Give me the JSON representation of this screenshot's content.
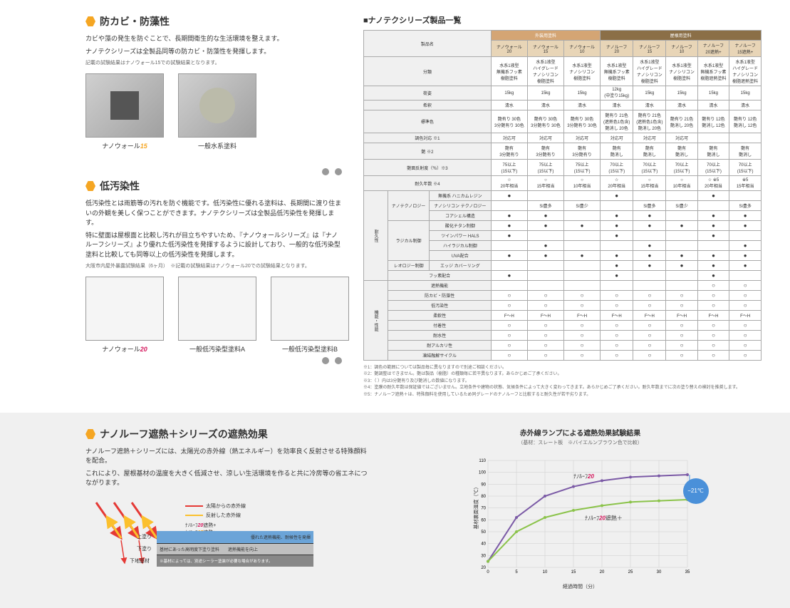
{
  "section1": {
    "title": "防カビ・防藻性",
    "desc1": "カビや藻の発生を防ぐことで、長期間衛生的な生活環境を整えます。",
    "desc2": "ナノテクシリーズは全製品同等の防カビ・防藻性を発揮します。",
    "note": "記載の試験結果はナノウォール15での試験結果となります。",
    "img1_caption_prefix": "ナノウォール",
    "img1_caption_num": "15",
    "img2_caption": "一般水系塗料"
  },
  "section2": {
    "title": "低汚染性",
    "desc1": "低汚染性とは雨筋等の汚れを防ぐ機能です。低汚染性に優れる塗料は、長期間に渡り住まいの外観を美しく保つことができます。ナノテクシリーズは全製品低汚染性を発揮します。",
    "desc2": "特に壁面は屋根面と比較し汚れが目立ちやすいため、『ナノウォールシリーズ』は『ナノルーフシリーズ』より優れた低汚染性を発揮するように設計しており、一般的な低汚染型塗料と比較しても同等以上の低汚染性を発揮します。",
    "note": "大阪市内屋外暴露試験結果（6ヶ月）　※記載の試験結果はナノウォール20での試験結果となります。",
    "img1_prefix": "ナノウォール",
    "img1_num": "20",
    "img2": "一般低汚染型塗料A",
    "img3": "一般低汚染型塗料B"
  },
  "table": {
    "title": "■ナノテクシリーズ製品一覧",
    "group1": "外装用塗料",
    "group2": "屋根用塗料",
    "products": [
      "ナノウォール\n20",
      "ナノウォール\n15",
      "ナノウォール\n10",
      "ナノルーフ\n20",
      "ナノルーフ\n15",
      "ナノルーフ\n10",
      "ナノルーフ\n20遮熱+",
      "ナノルーフ\n15遮熱+"
    ],
    "row_labels": {
      "name": "製品名",
      "category": "分類",
      "volume": "荷姿",
      "dilution": "希釈",
      "colors": "標準色",
      "color_support": "調色対応 ※1",
      "gloss": "艶 ※2",
      "reflectance": "艶面反射度（％）※3",
      "durability": "耐久年数 ※4",
      "tech_group": "耐久性",
      "nanotech": "ナノテクノロジー",
      "nanotech_sub1": "無機系\nハニカムレジン",
      "nanotech_sub2": "ナノシリコン\nテクノロジー",
      "nanotech_sub3": "コアシェル構造",
      "radical": "ラジカル制御",
      "radical_sub1": "酸化チタン制御",
      "radical_sub2": "ツインパワー\nHALS",
      "radical_sub3": "ハイラジカル制御",
      "radical_sub4": "UVA配合",
      "rheology": "レオロジー制御",
      "rheology_sub1": "エッジ\nカバーリング",
      "fluorine": "フッ素配合",
      "heat": "遮熱機能",
      "antimold": "防カビ・防藻性",
      "lowstain": "低汚染性",
      "flex": "柔軟性",
      "adhesion": "付着性",
      "water": "耐水性",
      "alkali": "耐アルカリ性",
      "freeze": "凍結融解サイクル",
      "func_group": "機能・性能"
    },
    "category_row": [
      "水系1液型\n無機系フッ素\n樹脂塗料",
      "水系1液型\nハイグレード\nナノシリコン\n樹脂塗料",
      "水系1液型\nナノシリコン\n樹脂塗料",
      "水系1液型\n無機系フッ素\n樹脂塗料",
      "水系1液型\nハイグレード\nナノシリコン\n樹脂塗料",
      "水系1液型\nナノシリコン\n樹脂塗料",
      "水系1液型\n無機系フッ素\n樹脂遮熱塗料",
      "水系1液型\nハイグレード\nナノシリコン\n樹脂遮熱塗料"
    ],
    "volume_row": [
      "15kg",
      "15kg",
      "15kg",
      "12kg\n(中塗り15kg)",
      "15kg",
      "15kg",
      "15kg",
      "15kg"
    ],
    "dilution_row": [
      "清水",
      "清水",
      "清水",
      "清水",
      "清水",
      "清水",
      "清水",
      "清水"
    ],
    "colors_row": [
      "艶有り 30色\n3分艶有り 30色",
      "艶有り 30色\n3分艶有り 30色",
      "艶有り 30色\n3分艶有り 30色",
      "艶有り 21色\n(遮熱色1色含)\n艶消し 20色",
      "艶有り 21色\n(遮熱色1色含)\n艶消し 20色",
      "艶有り 21色\n艶消し 20色",
      "艶有り 12色\n艶消し 12色",
      "艶有り 12色\n艶消し 12色"
    ],
    "color_support_row": [
      "対応可",
      "対応可",
      "対応可",
      "対応可",
      "対応可",
      "対応可",
      "",
      ""
    ],
    "gloss_row": [
      "艶有\n3分艶有り",
      "艶有\n3分艶有り",
      "艶有\n3分艶有り",
      "艶有\n艶消し",
      "艶有\n艶消し",
      "艶有\n艶消し",
      "艶有\n艶消し",
      "艶有\n艶消し"
    ],
    "reflectance_row": [
      "75以上\n(15以下)",
      "75以上\n(15以下)",
      "75以上\n(15以下)",
      "70以上\n(15以下)",
      "70以上\n(15以下)",
      "70以上\n(15以下)",
      "70以上\n(15以下)",
      "70以上\n(15以下)"
    ],
    "durability_row": [
      "☆\n20年相当",
      "○\n15年相当",
      "○\n10年相当",
      "☆\n20年相当",
      "○\n15年相当",
      "○\n10年相当",
      "☆ ※5\n20年相当",
      "※5\n15年相当"
    ],
    "nanotech1_row": [
      "●",
      "",
      "",
      "●",
      "",
      "",
      "●",
      ""
    ],
    "nanotech2_row": [
      "",
      "Si豊多",
      "Si豊少",
      "",
      "Si豊多",
      "Si豊少",
      "",
      "Si豊多"
    ],
    "nanotech3_row": [
      "●",
      "●",
      "",
      "●",
      "●",
      "",
      "●",
      "●"
    ],
    "radical1_row": [
      "●",
      "●",
      "●",
      "●",
      "●",
      "●",
      "●",
      "●"
    ],
    "radical2_row": [
      "●",
      "",
      "",
      "●",
      "",
      "",
      "●",
      ""
    ],
    "radical3_row": [
      "",
      "●",
      "",
      "",
      "●",
      "",
      "",
      "●"
    ],
    "radical4_row": [
      "●",
      "●",
      "●",
      "●",
      "●",
      "●",
      "●",
      "●"
    ],
    "rheology1_row": [
      "",
      "",
      "",
      "●",
      "●",
      "●",
      "●",
      "●"
    ],
    "fluorine_row": [
      "●",
      "",
      "",
      "●",
      "",
      "",
      "●",
      ""
    ],
    "heat_row": [
      "",
      "",
      "",
      "",
      "",
      "",
      "○",
      "○"
    ],
    "antimold_row": [
      "○",
      "○",
      "○",
      "○",
      "○",
      "○",
      "○",
      "○"
    ],
    "lowstain_row": [
      "○",
      "○",
      "○",
      "○",
      "○",
      "○",
      "○",
      "○"
    ],
    "flex_row": [
      "F～H",
      "F～H",
      "F～H",
      "F～H",
      "F～H",
      "F～H",
      "F～H",
      "F～H"
    ],
    "adhesion_row": [
      "○",
      "○",
      "○",
      "○",
      "○",
      "○",
      "○",
      "○"
    ],
    "water_row": [
      "○",
      "○",
      "○",
      "○",
      "○",
      "○",
      "○",
      "○"
    ],
    "alkali_row": [
      "○",
      "○",
      "○",
      "○",
      "○",
      "○",
      "○",
      "○"
    ],
    "freeze_row": [
      "○",
      "○",
      "○",
      "○",
      "○",
      "○",
      "○",
      "○"
    ]
  },
  "footnotes": [
    "※1：調色の範囲については製品毎に異なりますので別途ご相談ください。",
    "※2：艶調整はできません。艶は製品（樹脂）の種類毎に若干異なります。あらかじめご了承ください。",
    "※3：（ ）内は3分艶有り及び艶消しの数値になります。",
    "※4：塗膜の耐久年数は保証値ではございません。立地条件や建物の状態、気候条件によって大きく変わってきます。あらかじめご了承ください。耐久年数までに次の塗り替えの検討を推奨します。",
    "※5：ナノルーフ遮熱＋は、特殊顔料を使用しているため同グレードのナノルーフと比較すると耐久性が若干劣ります。"
  ],
  "section3": {
    "title": "ナノルーフ遮熱＋シリーズの遮熱効果",
    "desc1": "ナノルーフ遮熱＋シリーズには、太陽光の赤外線（熱エネルギー）を効率良く反射させる特殊顔料を配合。",
    "desc2": "これにより、屋根基材の温度を大きく低減させ、涼しい生活環境を作ると共に冷房等の省エネにつながります。",
    "legend1": "太陽からの赤外線",
    "legend2": "反射した赤外線",
    "layer_top_label": "上塗り",
    "layer_top_prod1_prefix": "ﾅﾉﾙｰﾌ",
    "layer_top_prod1_num": "20",
    "layer_top_prod1_suffix": "遮熱+",
    "layer_top_prod2_prefix": "ﾅﾉﾙｰﾌ",
    "layer_top_prod2_num": "15",
    "layer_top_prod2_suffix": "遮熱+",
    "layer_top_desc": "優れた遮熱機能、耐候性を発揮",
    "layer_mid_label": "下塗り",
    "layer_mid_desc": "基材にあった高明度下塗り塗料　　遮熱機能を向上",
    "layer_bot_label": "下地基材",
    "layer_bot_desc": "※基材によっては、別途シーラー塗装が必要な場合があります。"
  },
  "chart": {
    "title": "赤外線ランプによる遮熱効果試験結果",
    "subtitle": "（基材：スレート板　※バイエルンブラウン色で比較）",
    "y_label": "基材裏面温度（℃）",
    "x_label": "経過時間（分）",
    "y_min": 20,
    "y_max": 110,
    "y_step": 10,
    "x_min": 0,
    "x_max": 35,
    "x_step": 5,
    "series1_name_prefix": "ﾅﾉﾙｰﾌ",
    "series1_name_num": "20",
    "series1_color": "#7b5aa6",
    "series1_data": [
      [
        0,
        25
      ],
      [
        5,
        62
      ],
      [
        10,
        80
      ],
      [
        15,
        88
      ],
      [
        20,
        93
      ],
      [
        25,
        96
      ],
      [
        30,
        97
      ],
      [
        35,
        98
      ]
    ],
    "series2_name_prefix": "ﾅﾉﾙｰﾌ",
    "series2_name_num": "20",
    "series2_name_suffix": "遮熱＋",
    "series2_color": "#8bc34a",
    "series2_data": [
      [
        0,
        25
      ],
      [
        5,
        50
      ],
      [
        10,
        62
      ],
      [
        15,
        68
      ],
      [
        20,
        72
      ],
      [
        25,
        75
      ],
      [
        30,
        76
      ],
      [
        35,
        77
      ]
    ],
    "badge": "−21℃",
    "grid_color": "#ccc",
    "bg": "#fff"
  }
}
